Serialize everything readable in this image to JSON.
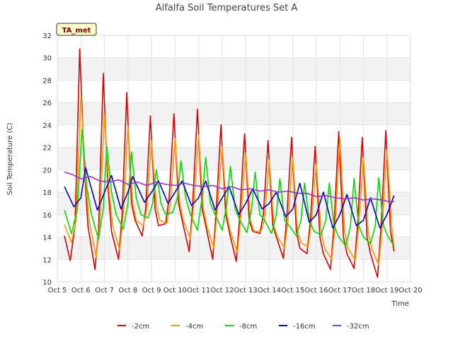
{
  "chart_data": {
    "type": "line",
    "title": "Alfalfa Soil Temperatures Set A",
    "xlabel": "Time",
    "ylabel": "Soil Temperature (C)",
    "annotation": "TA_met",
    "x_ticks": [
      "Oct 5",
      "Oct 6",
      "Oct 7",
      "Oct 8",
      "Oct 9",
      "Oct 10",
      "Oct 11",
      "Oct 12",
      "Oct 13",
      "Oct 14",
      "Oct 15",
      "Oct 16",
      "Oct 17",
      "Oct 18",
      "Oct 19",
      "Oct 20"
    ],
    "xlim": [
      5,
      20
    ],
    "ylim": [
      10,
      32
    ],
    "y_ticks": [
      10,
      12,
      14,
      16,
      18,
      20,
      22,
      24,
      26,
      28,
      30,
      32
    ],
    "grid": true,
    "legend_position": "bottom",
    "series": [
      {
        "name": "-2cm",
        "color": "#dd0000",
        "x": [
          5.3,
          5.55,
          5.75,
          5.95,
          6.15,
          6.3,
          6.6,
          6.75,
          6.95,
          7.15,
          7.3,
          7.6,
          7.75,
          7.95,
          8.15,
          8.3,
          8.6,
          8.75,
          8.95,
          9.15,
          9.3,
          9.6,
          9.75,
          9.95,
          10.15,
          10.3,
          10.6,
          10.75,
          10.95,
          11.15,
          11.3,
          11.6,
          11.75,
          11.95,
          12.15,
          12.3,
          12.6,
          12.75,
          12.95,
          13.15,
          13.3,
          13.6,
          13.75,
          13.95,
          14.15,
          14.3,
          14.6,
          14.75,
          14.95,
          15.15,
          15.3,
          15.6,
          15.75,
          15.95,
          16.15,
          16.3,
          16.6,
          16.75,
          16.95,
          17.15,
          17.3,
          17.6,
          17.75,
          17.95,
          18.15,
          18.3,
          18.6,
          18.75,
          18.95,
          19.15,
          19.3
        ],
        "y": [
          14.1,
          11.9,
          15.0,
          30.8,
          20.0,
          15.0,
          11.1,
          14.5,
          28.6,
          18.5,
          14.5,
          12.0,
          16.0,
          26.9,
          17.0,
          15.5,
          14.1,
          16.5,
          24.8,
          16.5,
          15.0,
          15.2,
          17.5,
          25.0,
          17.0,
          15.5,
          12.7,
          17.0,
          25.4,
          16.5,
          15.0,
          12.0,
          16.5,
          24.0,
          16.0,
          14.5,
          11.8,
          16.0,
          23.2,
          15.5,
          14.5,
          14.3,
          16.0,
          22.6,
          15.0,
          14.0,
          12.1,
          16.0,
          22.9,
          14.5,
          13.0,
          12.5,
          15.5,
          22.1,
          14.0,
          12.5,
          11.1,
          15.0,
          23.4,
          14.0,
          12.5,
          11.2,
          15.0,
          22.9,
          14.0,
          12.5,
          10.4,
          15.0,
          23.5,
          14.5,
          12.7
        ]
      },
      {
        "name": "-4cm",
        "color": "#ff9900",
        "x": [
          5.3,
          5.6,
          5.8,
          6.0,
          6.2,
          6.35,
          6.65,
          6.8,
          7.0,
          7.2,
          7.35,
          7.65,
          7.8,
          8.0,
          8.2,
          8.35,
          8.65,
          8.8,
          9.0,
          9.2,
          9.35,
          9.65,
          9.8,
          10.0,
          10.2,
          10.35,
          10.65,
          10.8,
          11.0,
          11.2,
          11.35,
          11.65,
          11.8,
          12.0,
          12.2,
          12.35,
          12.65,
          12.8,
          13.0,
          13.2,
          13.35,
          13.65,
          13.8,
          14.0,
          14.2,
          14.35,
          14.65,
          14.8,
          15.0,
          15.2,
          15.35,
          15.65,
          15.8,
          16.0,
          16.2,
          16.35,
          16.65,
          16.8,
          17.0,
          17.2,
          17.35,
          17.65,
          17.8,
          18.0,
          18.2,
          18.35,
          18.65,
          18.8,
          19.0,
          19.2,
          19.3
        ],
        "y": [
          15.1,
          13.5,
          15.5,
          26.6,
          19.0,
          15.5,
          12.2,
          15.0,
          25.1,
          18.0,
          15.0,
          12.8,
          16.0,
          23.9,
          17.0,
          15.5,
          15.0,
          16.5,
          22.6,
          17.0,
          15.5,
          15.2,
          17.0,
          22.8,
          17.0,
          15.5,
          13.8,
          17.0,
          23.1,
          16.5,
          15.0,
          13.0,
          16.5,
          22.1,
          16.0,
          14.5,
          12.6,
          16.0,
          21.5,
          15.5,
          14.5,
          14.5,
          15.5,
          20.9,
          15.0,
          14.0,
          13.0,
          15.5,
          21.1,
          14.5,
          13.5,
          13.1,
          15.5,
          20.5,
          14.5,
          13.0,
          12.0,
          15.0,
          22.8,
          14.5,
          13.0,
          11.9,
          15.0,
          21.1,
          14.5,
          13.0,
          11.5,
          15.0,
          21.8,
          15.0,
          13.0
        ]
      },
      {
        "name": "-8cm",
        "color": "#00dd00",
        "x": [
          5.3,
          5.6,
          5.85,
          6.05,
          6.25,
          6.45,
          6.75,
          6.95,
          7.1,
          7.3,
          7.5,
          7.8,
          8.0,
          8.15,
          8.35,
          8.55,
          8.85,
          9.05,
          9.2,
          9.4,
          9.6,
          9.9,
          10.1,
          10.25,
          10.45,
          10.65,
          10.95,
          11.15,
          11.3,
          11.5,
          11.7,
          12.0,
          12.2,
          12.35,
          12.55,
          12.75,
          13.05,
          13.25,
          13.4,
          13.6,
          13.8,
          14.1,
          14.3,
          14.45,
          14.65,
          14.85,
          15.15,
          15.35,
          15.5,
          15.7,
          15.9,
          16.2,
          16.4,
          16.55,
          16.75,
          16.95,
          17.25,
          17.45,
          17.6,
          17.8,
          18.0,
          18.3,
          18.5,
          18.65,
          18.85,
          19.05,
          19.3
        ],
        "y": [
          16.4,
          14.3,
          16.5,
          23.6,
          18.5,
          16.0,
          13.8,
          16.5,
          22.1,
          18.0,
          16.0,
          14.7,
          17.0,
          21.6,
          17.5,
          16.0,
          15.7,
          17.0,
          20.0,
          17.0,
          16.0,
          16.2,
          17.5,
          20.8,
          17.5,
          16.0,
          14.6,
          17.5,
          21.1,
          17.0,
          16.0,
          14.6,
          17.0,
          20.3,
          16.5,
          15.5,
          14.4,
          16.5,
          19.8,
          16.0,
          15.5,
          14.3,
          16.0,
          19.2,
          15.5,
          15.0,
          14.1,
          15.5,
          18.8,
          15.5,
          14.5,
          14.2,
          15.5,
          18.8,
          15.0,
          14.0,
          13.2,
          15.0,
          19.2,
          15.0,
          14.0,
          13.4,
          15.0,
          19.3,
          15.0,
          14.0,
          13.2
        ]
      },
      {
        "name": "-16cm",
        "color": "#0000cc",
        "x": [
          5.3,
          5.7,
          6.0,
          6.2,
          6.7,
          7.1,
          7.3,
          7.7,
          8.0,
          8.2,
          8.7,
          9.0,
          9.3,
          9.7,
          10.0,
          10.3,
          10.7,
          11.0,
          11.3,
          11.7,
          12.0,
          12.3,
          12.7,
          13.0,
          13.3,
          13.7,
          14.0,
          14.3,
          14.7,
          15.0,
          15.3,
          15.7,
          16.0,
          16.3,
          16.7,
          17.0,
          17.3,
          17.7,
          18.0,
          18.3,
          18.7,
          19.0,
          19.3
        ],
        "y": [
          18.5,
          16.7,
          17.5,
          20.2,
          16.4,
          18.5,
          19.5,
          16.5,
          18.0,
          19.4,
          17.1,
          18.0,
          19.0,
          17.0,
          18.0,
          19.0,
          16.8,
          17.5,
          19.0,
          16.4,
          17.5,
          18.5,
          16.0,
          17.0,
          18.3,
          16.5,
          17.0,
          18.0,
          15.8,
          16.5,
          18.8,
          15.3,
          16.0,
          18.0,
          14.8,
          16.0,
          17.8,
          15.0,
          15.5,
          17.5,
          14.8,
          16.0,
          17.7
        ]
      },
      {
        "name": "-32cm",
        "color": "#9933cc",
        "x": [
          5.3,
          5.6,
          6.0,
          6.4,
          6.8,
          7.2,
          7.6,
          8.0,
          8.4,
          8.8,
          9.2,
          9.6,
          10.0,
          10.4,
          10.8,
          11.2,
          11.6,
          12.0,
          12.4,
          12.8,
          13.2,
          13.6,
          14.0,
          14.4,
          14.8,
          15.2,
          15.6,
          16.0,
          16.4,
          16.8,
          17.2,
          17.6,
          18.0,
          18.4,
          18.8,
          19.2,
          19.3
        ],
        "y": [
          19.8,
          19.6,
          19.2,
          19.4,
          19.0,
          18.9,
          19.1,
          18.7,
          18.9,
          18.6,
          18.9,
          18.7,
          18.6,
          18.8,
          18.6,
          18.5,
          18.6,
          18.3,
          18.5,
          18.2,
          18.3,
          18.1,
          18.2,
          18.0,
          18.1,
          17.9,
          17.9,
          17.6,
          17.7,
          17.5,
          17.4,
          17.5,
          17.3,
          17.4,
          17.3,
          17.1,
          17.2
        ]
      }
    ]
  }
}
